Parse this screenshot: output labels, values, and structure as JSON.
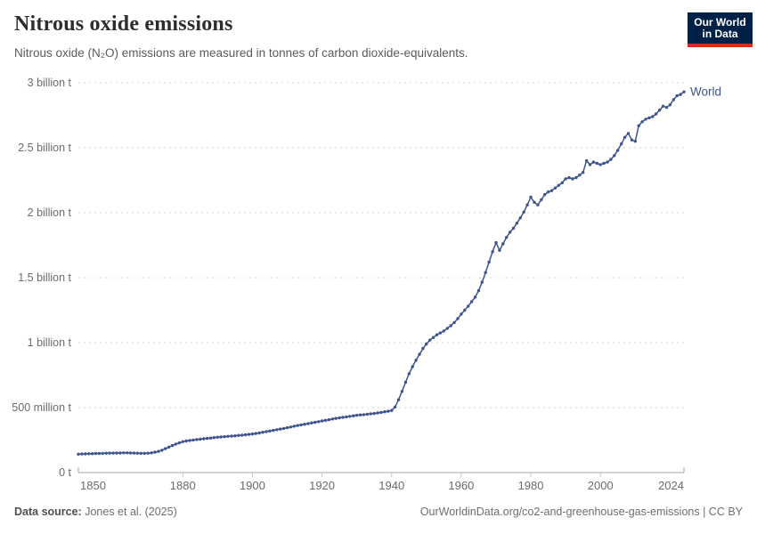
{
  "header": {
    "title": "Nitrous oxide emissions",
    "subtitle": "Nitrous oxide (N₂O) emissions are measured in tonnes of carbon dioxide-equivalents.",
    "logo": {
      "line1": "Our World",
      "line2": "in Data",
      "bg_color": "#002147",
      "accent_color": "#d8281f"
    }
  },
  "chart_data": {
    "type": "line",
    "title": "Nitrous oxide emissions",
    "xlabel": "",
    "ylabel": "",
    "xlim": [
      1850,
      2024
    ],
    "ylim": [
      0,
      3
    ],
    "grid": true,
    "legend_position": "end-of-line",
    "unit": "tonnes of CO2-equivalents",
    "x_ticks": [
      1850,
      1880,
      1900,
      1920,
      1940,
      1960,
      1980,
      2000,
      2024
    ],
    "y_ticks": [
      {
        "value": 0,
        "label": "0 t"
      },
      {
        "value": 0.5,
        "label": "500 million t"
      },
      {
        "value": 1,
        "label": "1 billion t"
      },
      {
        "value": 1.5,
        "label": "1.5 billion t"
      },
      {
        "value": 2,
        "label": "2 billion t"
      },
      {
        "value": 2.5,
        "label": "2.5 billion t"
      },
      {
        "value": 3,
        "label": "3 billion t"
      }
    ],
    "y_unit_billions": "billion t",
    "series": [
      {
        "name": "World",
        "color": "#3e548c",
        "x_start": 1850,
        "x_step": 1,
        "values_unit": "billion tonnes CO2-eq",
        "values": [
          0.142,
          0.143,
          0.144,
          0.145,
          0.146,
          0.147,
          0.147,
          0.148,
          0.149,
          0.15,
          0.15,
          0.151,
          0.151,
          0.152,
          0.152,
          0.151,
          0.15,
          0.149,
          0.148,
          0.148,
          0.149,
          0.152,
          0.157,
          0.163,
          0.172,
          0.184,
          0.196,
          0.208,
          0.219,
          0.229,
          0.238,
          0.243,
          0.247,
          0.251,
          0.254,
          0.257,
          0.26,
          0.263,
          0.266,
          0.269,
          0.272,
          0.274,
          0.277,
          0.279,
          0.281,
          0.283,
          0.286,
          0.288,
          0.291,
          0.294,
          0.297,
          0.301,
          0.305,
          0.31,
          0.315,
          0.32,
          0.325,
          0.33,
          0.335,
          0.34,
          0.345,
          0.351,
          0.357,
          0.362,
          0.367,
          0.372,
          0.377,
          0.382,
          0.387,
          0.392,
          0.397,
          0.402,
          0.407,
          0.412,
          0.417,
          0.421,
          0.425,
          0.429,
          0.433,
          0.437,
          0.441,
          0.444,
          0.446,
          0.449,
          0.452,
          0.455,
          0.459,
          0.463,
          0.468,
          0.472,
          0.478,
          0.505,
          0.56,
          0.625,
          0.695,
          0.76,
          0.815,
          0.865,
          0.91,
          0.955,
          0.99,
          1.02,
          1.04,
          1.06,
          1.075,
          1.09,
          1.11,
          1.13,
          1.155,
          1.185,
          1.22,
          1.25,
          1.28,
          1.315,
          1.35,
          1.4,
          1.465,
          1.54,
          1.62,
          1.7,
          1.77,
          1.71,
          1.76,
          1.81,
          1.85,
          1.88,
          1.92,
          1.96,
          2.005,
          2.06,
          2.12,
          2.08,
          2.06,
          2.1,
          2.14,
          2.16,
          2.17,
          2.19,
          2.21,
          2.23,
          2.26,
          2.27,
          2.26,
          2.27,
          2.29,
          2.31,
          2.4,
          2.37,
          2.39,
          2.38,
          2.37,
          2.38,
          2.39,
          2.41,
          2.44,
          2.48,
          2.53,
          2.58,
          2.61,
          2.56,
          2.55,
          2.67,
          2.7,
          2.72,
          2.73,
          2.74,
          2.76,
          2.79,
          2.82,
          2.81,
          2.83,
          2.87,
          2.9,
          2.91,
          2.93
        ]
      }
    ],
    "colors": {
      "gridline": "#d7d7d7",
      "axis_line": "#a8a8a8",
      "tick": "#c4c4c4",
      "tick_label": "#6b6b6b"
    }
  },
  "footer": {
    "source_label": "Data source:",
    "source_value": "Jones et al. (2025)",
    "note": "OurWorldinData.org/co2-and-greenhouse-gas-emissions | CC BY"
  }
}
